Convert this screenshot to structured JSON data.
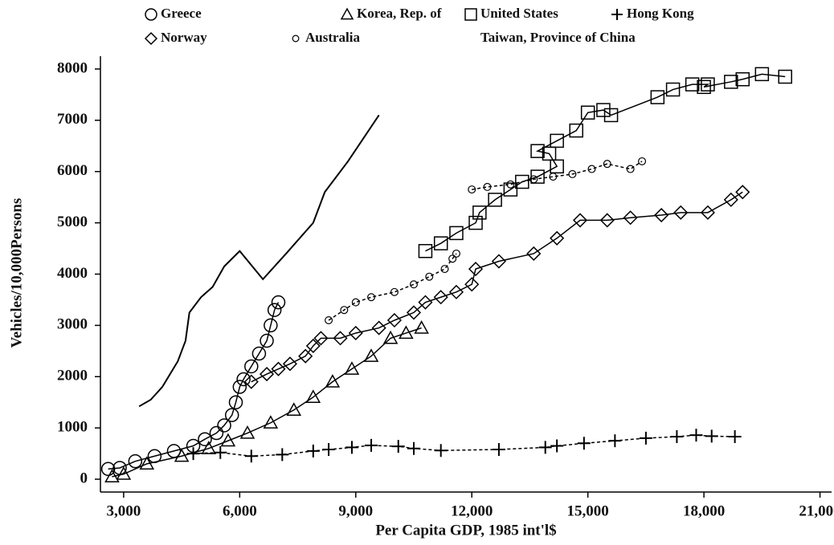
{
  "chart_data": {
    "type": "line",
    "xlabel": "Per Capita GDP, 1985 int'l$",
    "ylabel": "Vehicles/10,000Persons",
    "xlim": [
      2400,
      21300
    ],
    "ylim": [
      -250,
      8250
    ],
    "xticks": [
      {
        "value": 3000,
        "label": "3,000"
      },
      {
        "value": 6000,
        "label": "6,000"
      },
      {
        "value": 9000,
        "label": "9,000"
      },
      {
        "value": 12000,
        "label": "12,000"
      },
      {
        "value": 15000,
        "label": "15,000"
      },
      {
        "value": 18000,
        "label": "18,000"
      },
      {
        "value": 21000,
        "label": "21,000"
      }
    ],
    "yticks": [
      0,
      1000,
      2000,
      3000,
      4000,
      5000,
      6000,
      7000,
      8000
    ],
    "grid": false,
    "legend": "top",
    "series": [
      {
        "name": "Greece",
        "color": "#000000",
        "marker": "circle",
        "dash": "solid",
        "x": [
          2600,
          2900,
          3300,
          3800,
          4300,
          4800,
          5100,
          5400,
          5600,
          5800,
          5900,
          6000,
          6100,
          6300,
          6500,
          6700,
          6800,
          6900,
          7000
        ],
        "values": [
          200,
          220,
          350,
          450,
          550,
          650,
          780,
          900,
          1050,
          1250,
          1500,
          1800,
          1950,
          2200,
          2450,
          2700,
          3000,
          3300,
          3450
        ]
      },
      {
        "name": "Korea, Rep. of",
        "color": "#000000",
        "marker": "triangle",
        "dash": "solid",
        "x": [
          2700,
          3000,
          3600,
          4500,
          5200,
          5700,
          6200,
          6800,
          7400,
          7900,
          8400,
          8900,
          9400,
          9900,
          10300,
          10700
        ],
        "values": [
          50,
          100,
          300,
          450,
          600,
          750,
          900,
          1100,
          1350,
          1600,
          1900,
          2150,
          2400,
          2750,
          2850,
          2950
        ]
      },
      {
        "name": "United States",
        "color": "#000000",
        "marker": "square",
        "dash": "solid",
        "x": [
          10800,
          11200,
          11600,
          12100,
          12200,
          12600,
          13000,
          13300,
          13700,
          14200,
          14000,
          13700,
          14200,
          14700,
          15000,
          15400,
          15600,
          16800,
          17200,
          17700,
          18100,
          18000,
          18700,
          19000,
          19500,
          20100
        ],
        "values": [
          4450,
          4600,
          4800,
          5000,
          5200,
          5450,
          5650,
          5800,
          5900,
          6100,
          6350,
          6400,
          6600,
          6800,
          7150,
          7200,
          7100,
          7450,
          7600,
          7700,
          7700,
          7650,
          7750,
          7800,
          7900,
          7850
        ]
      },
      {
        "name": "Hong Kong",
        "color": "#000000",
        "marker": "plus",
        "dash": "dashed",
        "x": [
          4800,
          5500,
          6300,
          7100,
          7900,
          8300,
          8900,
          9400,
          10100,
          10500,
          11200,
          12700,
          13900,
          14200,
          14900,
          15700,
          16500,
          17300,
          17800,
          18200,
          18800
        ],
        "values": [
          500,
          520,
          450,
          480,
          550,
          580,
          620,
          660,
          640,
          600,
          560,
          580,
          620,
          650,
          700,
          750,
          800,
          830,
          860,
          840,
          830
        ]
      },
      {
        "name": "Norway",
        "color": "#000000",
        "marker": "diamond",
        "dash": "solid",
        "x": [
          6300,
          6700,
          7000,
          7300,
          7700,
          7900,
          8100,
          8600,
          9000,
          9600,
          10000,
          10500,
          10800,
          11200,
          11600,
          12000,
          12100,
          12700,
          13600,
          14200,
          14800,
          15500,
          16100,
          16900,
          17400,
          18100,
          18700,
          19000
        ],
        "values": [
          1900,
          2050,
          2150,
          2250,
          2400,
          2600,
          2750,
          2750,
          2850,
          2950,
          3100,
          3250,
          3450,
          3550,
          3650,
          3800,
          4100,
          4250,
          4400,
          4700,
          5050,
          5050,
          5100,
          5150,
          5200,
          5200,
          5450,
          5600
        ]
      },
      {
        "name": "Australia",
        "color": "#000000",
        "marker": "small-circle",
        "dash": "dashed",
        "x": [
          8300,
          8700,
          9000,
          9400,
          10000,
          10500,
          10900,
          11300,
          11500,
          11600,
          null,
          12000,
          12400,
          13000,
          13600,
          14100,
          14600,
          15100,
          15500,
          16100,
          16400
        ],
        "values": [
          3100,
          3300,
          3450,
          3550,
          3650,
          3800,
          3950,
          4100,
          4300,
          4400,
          null,
          5650,
          5700,
          5750,
          5850,
          5900,
          5950,
          6050,
          6150,
          6050,
          6200
        ]
      },
      {
        "name": "Taiwan, Province of China",
        "color": "#000000",
        "marker": "none",
        "dash": "solid",
        "x": [
          3400,
          3700,
          4000,
          4400,
          4600,
          4700,
          5000,
          5300,
          5600,
          6000,
          6600,
          7200,
          7900,
          8200,
          8800,
          9200,
          9600
        ],
        "values": [
          1420,
          1550,
          1800,
          2300,
          2700,
          3250,
          3550,
          3750,
          4150,
          4450,
          3900,
          4400,
          5000,
          5600,
          6200,
          6650,
          7100
        ]
      }
    ]
  }
}
